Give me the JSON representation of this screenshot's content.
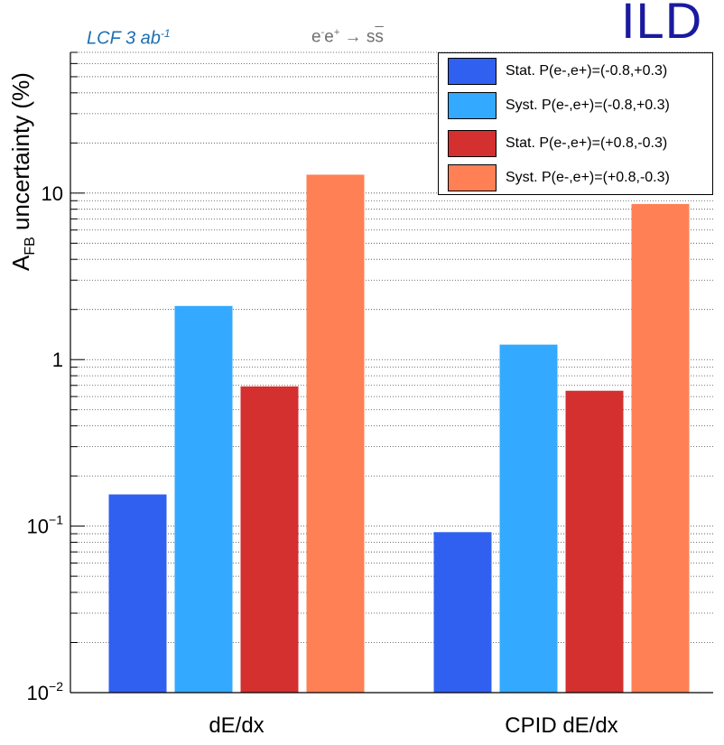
{
  "header": {
    "logo_text": "ILD",
    "luminosity_label": "LCF 3 ab",
    "luminosity_sup": "-1",
    "process_label_prefix": "e",
    "process_label_sup1": "-",
    "process_label_mid": "e",
    "process_label_sup2": "+",
    "process_label_arrow": " → s",
    "process_label_sbar": "s"
  },
  "colors": {
    "stat_left": "#3060f0",
    "syst_left": "#33aaff",
    "stat_right": "#d43030",
    "syst_right": "#ff8055",
    "logo": "#1a1aa0",
    "lcf_text": "#1f6fb2"
  },
  "chart_data": {
    "type": "bar",
    "yscale": "log",
    "ylabel_main": "A",
    "ylabel_sub": "FB",
    "ylabel_rest": " uncertainty (%)",
    "xlabel": "",
    "ylim": [
      0.01,
      70
    ],
    "yticks": [
      {
        "value": 0.01,
        "base": "10",
        "exp": "−2"
      },
      {
        "value": 0.1,
        "base": "10",
        "exp": "−1"
      },
      {
        "value": 1,
        "base": "1",
        "exp": ""
      },
      {
        "value": 10,
        "base": "10",
        "exp": ""
      }
    ],
    "categories": [
      "dE/dx",
      "CPID dE/dx"
    ],
    "series": [
      {
        "name": "Stat. P(e-,e+)=(-0.8,+0.3)",
        "color_key": "stat_left",
        "values": [
          0.155,
          0.092
        ]
      },
      {
        "name": "Syst. P(e-,e+)=(-0.8,+0.3)",
        "color_key": "syst_left",
        "values": [
          2.1,
          1.23
        ]
      },
      {
        "name": "Stat. P(e-,e+)=(+0.8,-0.3)",
        "color_key": "stat_right",
        "values": [
          0.69,
          0.65
        ]
      },
      {
        "name": "Syst. P(e-,e+)=(+0.8,-0.3)",
        "color_key": "syst_right",
        "values": [
          12.9,
          8.6
        ]
      }
    ],
    "grid": "horizontal",
    "legend_position": "top-right"
  }
}
